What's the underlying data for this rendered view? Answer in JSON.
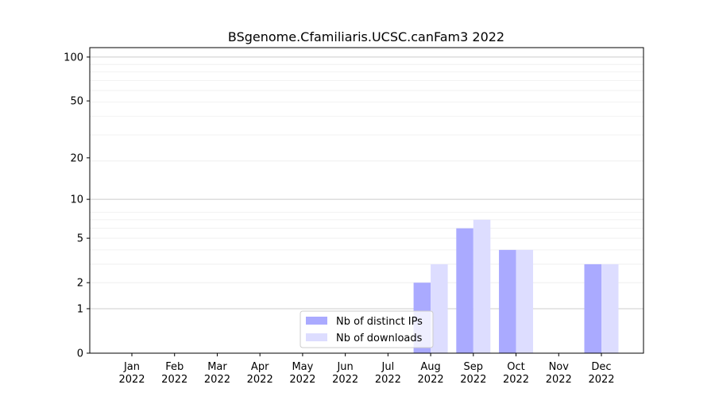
{
  "chart_data": {
    "type": "bar",
    "title": "BSgenome.Cfamiliaris.UCSC.canFam3 2022",
    "xlabel": "",
    "ylabel": "",
    "yscale": "symlog (log10(1+y))",
    "ylim": [
      0,
      116
    ],
    "yticks": [
      0,
      1,
      2,
      5,
      10,
      20,
      50,
      100
    ],
    "categories": [
      "Jan\n2022",
      "Feb\n2022",
      "Mar\n2022",
      "Apr\n2022",
      "May\n2022",
      "Jun\n2022",
      "Jul\n2022",
      "Aug\n2022",
      "Sep\n2022",
      "Oct\n2022",
      "Nov\n2022",
      "Dec\n2022"
    ],
    "series": [
      {
        "name": "Nb of distinct IPs",
        "color": "#aaaaff",
        "values": [
          0,
          0,
          0,
          0,
          0,
          0,
          0,
          2,
          6,
          4,
          0,
          3
        ]
      },
      {
        "name": "Nb of downloads",
        "color": "#ddddff",
        "values": [
          0,
          0,
          0,
          0,
          0,
          0,
          0,
          3,
          7,
          4,
          0,
          3
        ]
      }
    ],
    "legend_position": "lower-center",
    "grid": true
  }
}
